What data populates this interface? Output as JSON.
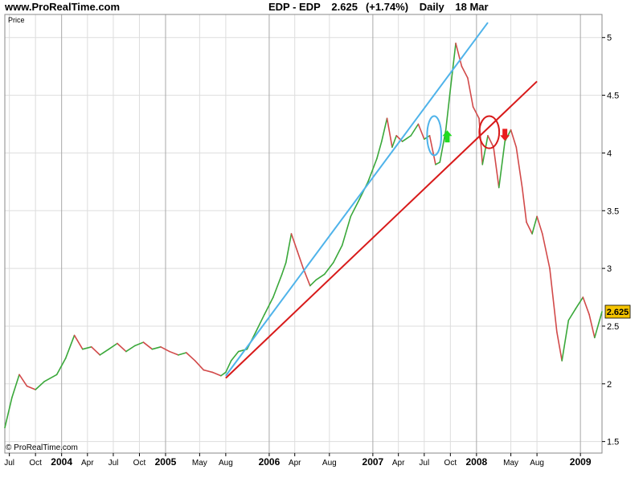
{
  "site_title": "www.ProRealTime.com",
  "header": {
    "instrument": "EDP - EDP",
    "last_price": "2.625",
    "change": "(+1.74%)",
    "period": "Daily",
    "date": "18 Mar"
  },
  "copyright": "© ProRealTime.com",
  "colors": {
    "up": "#3aa83a",
    "down": "#d24a4a",
    "fast_trendline": "#4fb3ea",
    "slow_trendline": "#d81a1a",
    "grid": "#dddddd",
    "frame": "#8a8a8a",
    "price_badge": "#f5c400"
  },
  "chart_data": {
    "type": "line",
    "title": "",
    "xlabel": "",
    "ylabel": "Price",
    "ylim": [
      1.4,
      5.2
    ],
    "yticks": [
      1.5,
      2,
      2.5,
      3,
      3.5,
      4,
      4.5,
      5
    ],
    "grid": true,
    "legend": "none",
    "x_range": [
      "2003-06-15",
      "2009-03-18"
    ],
    "x_ticks": [
      {
        "label": "Jul",
        "date": "2003-07-01",
        "major": false
      },
      {
        "label": "Oct",
        "date": "2003-10-01",
        "major": false
      },
      {
        "label": "2004",
        "date": "2004-01-01",
        "major": true
      },
      {
        "label": "Apr",
        "date": "2004-04-01",
        "major": false
      },
      {
        "label": "Jul",
        "date": "2004-07-01",
        "major": false
      },
      {
        "label": "Oct",
        "date": "2004-10-01",
        "major": false
      },
      {
        "label": "2005",
        "date": "2005-01-01",
        "major": true
      },
      {
        "label": "May",
        "date": "2005-05-01",
        "major": false
      },
      {
        "label": "Aug",
        "date": "2005-08-01",
        "major": false
      },
      {
        "label": "2006",
        "date": "2006-01-01",
        "major": true
      },
      {
        "label": "Apr",
        "date": "2006-04-01",
        "major": false
      },
      {
        "label": "Aug",
        "date": "2006-08-01",
        "major": false
      },
      {
        "label": "2007",
        "date": "2007-01-01",
        "major": true
      },
      {
        "label": "Apr",
        "date": "2007-04-01",
        "major": false
      },
      {
        "label": "Jul",
        "date": "2007-07-01",
        "major": false
      },
      {
        "label": "Oct",
        "date": "2007-10-01",
        "major": false
      },
      {
        "label": "2008",
        "date": "2008-01-01",
        "major": true
      },
      {
        "label": "May",
        "date": "2008-05-01",
        "major": false
      },
      {
        "label": "Aug",
        "date": "2008-08-01",
        "major": false
      },
      {
        "label": "2009",
        "date": "2009-01-01",
        "major": true
      }
    ],
    "series": [
      {
        "values": [
          [
            "2003-06-15",
            1.62
          ],
          [
            "2003-07-10",
            1.88
          ],
          [
            "2003-08-05",
            2.08
          ],
          [
            "2003-09-01",
            1.98
          ],
          [
            "2003-10-01",
            1.95
          ],
          [
            "2003-11-01",
            2.02
          ],
          [
            "2003-12-15",
            2.08
          ],
          [
            "2004-01-15",
            2.22
          ],
          [
            "2004-02-15",
            2.42
          ],
          [
            "2004-03-15",
            2.3
          ],
          [
            "2004-04-15",
            2.32
          ],
          [
            "2004-05-15",
            2.25
          ],
          [
            "2004-06-15",
            2.3
          ],
          [
            "2004-07-15",
            2.35
          ],
          [
            "2004-08-15",
            2.28
          ],
          [
            "2004-09-15",
            2.33
          ],
          [
            "2004-10-15",
            2.36
          ],
          [
            "2004-11-15",
            2.3
          ],
          [
            "2004-12-15",
            2.32
          ],
          [
            "2005-01-15",
            2.28
          ],
          [
            "2005-02-15",
            2.25
          ],
          [
            "2005-03-15",
            2.27
          ],
          [
            "2005-04-15",
            2.2
          ],
          [
            "2005-05-15",
            2.12
          ],
          [
            "2005-06-15",
            2.1
          ],
          [
            "2005-07-15",
            2.07
          ],
          [
            "2005-08-01",
            2.1
          ],
          [
            "2005-08-20",
            2.2
          ],
          [
            "2005-09-15",
            2.28
          ],
          [
            "2005-10-15",
            2.3
          ],
          [
            "2005-11-15",
            2.45
          ],
          [
            "2005-12-15",
            2.6
          ],
          [
            "2006-01-15",
            2.75
          ],
          [
            "2006-02-15",
            2.95
          ],
          [
            "2006-03-01",
            3.05
          ],
          [
            "2006-03-20",
            3.3
          ],
          [
            "2006-04-10",
            3.15
          ],
          [
            "2006-05-01",
            3.0
          ],
          [
            "2006-05-25",
            2.85
          ],
          [
            "2006-06-15",
            2.9
          ],
          [
            "2006-07-15",
            2.95
          ],
          [
            "2006-08-15",
            3.05
          ],
          [
            "2006-09-15",
            3.2
          ],
          [
            "2006-10-15",
            3.45
          ],
          [
            "2006-11-15",
            3.6
          ],
          [
            "2006-12-15",
            3.75
          ],
          [
            "2007-01-15",
            3.95
          ],
          [
            "2007-02-01",
            4.1
          ],
          [
            "2007-02-20",
            4.3
          ],
          [
            "2007-03-10",
            4.05
          ],
          [
            "2007-03-25",
            4.15
          ],
          [
            "2007-04-15",
            4.1
          ],
          [
            "2007-05-15",
            4.15
          ],
          [
            "2007-06-10",
            4.25
          ],
          [
            "2007-07-01",
            4.12
          ],
          [
            "2007-07-20",
            4.15
          ],
          [
            "2007-08-10",
            3.9
          ],
          [
            "2007-08-25",
            3.92
          ],
          [
            "2007-09-15",
            4.2
          ],
          [
            "2007-10-01",
            4.55
          ],
          [
            "2007-10-20",
            4.95
          ],
          [
            "2007-11-10",
            4.75
          ],
          [
            "2007-12-01",
            4.65
          ],
          [
            "2007-12-20",
            4.4
          ],
          [
            "2008-01-10",
            4.3
          ],
          [
            "2008-01-22",
            3.9
          ],
          [
            "2008-02-10",
            4.15
          ],
          [
            "2008-03-01",
            4.05
          ],
          [
            "2008-03-20",
            3.7
          ],
          [
            "2008-04-10",
            4.1
          ],
          [
            "2008-05-01",
            4.2
          ],
          [
            "2008-05-20",
            4.05
          ],
          [
            "2008-06-10",
            3.7
          ],
          [
            "2008-06-25",
            3.4
          ],
          [
            "2008-07-15",
            3.3
          ],
          [
            "2008-08-01",
            3.45
          ],
          [
            "2008-08-20",
            3.3
          ],
          [
            "2008-09-15",
            3.0
          ],
          [
            "2008-10-10",
            2.45
          ],
          [
            "2008-10-28",
            2.2
          ],
          [
            "2008-11-20",
            2.55
          ],
          [
            "2008-12-15",
            2.65
          ],
          [
            "2009-01-10",
            2.75
          ],
          [
            "2009-02-01",
            2.6
          ],
          [
            "2009-02-20",
            2.4
          ],
          [
            "2009-03-18",
            2.625
          ]
        ]
      }
    ],
    "annotations": {
      "trendlines": [
        {
          "id": "fast",
          "color": "#4fb3ea",
          "from": [
            "2005-08-01",
            2.07
          ],
          "to": [
            "2008-02-10",
            5.13
          ]
        },
        {
          "id": "slow",
          "color": "#d81a1a",
          "from": [
            "2005-08-01",
            2.05
          ],
          "to": [
            "2008-08-01",
            4.62
          ]
        }
      ],
      "ellipses": [
        {
          "id": "blue",
          "color": "#4fb3ea",
          "center": [
            "2007-08-05",
            4.15
          ],
          "rx_days": 25,
          "ry": 0.17
        },
        {
          "id": "red",
          "color": "#d81a1a",
          "center": [
            "2008-02-15",
            4.18
          ],
          "rx_days": 35,
          "ry": 0.14
        }
      ],
      "arrows": [
        {
          "id": "buy",
          "direction": "up",
          "color": "#1fdc1f",
          "at": [
            "2007-09-20",
            4.14
          ]
        },
        {
          "id": "sell",
          "direction": "down",
          "color": "#e81e1e",
          "at": [
            "2008-04-10",
            4.16
          ]
        }
      ]
    }
  }
}
